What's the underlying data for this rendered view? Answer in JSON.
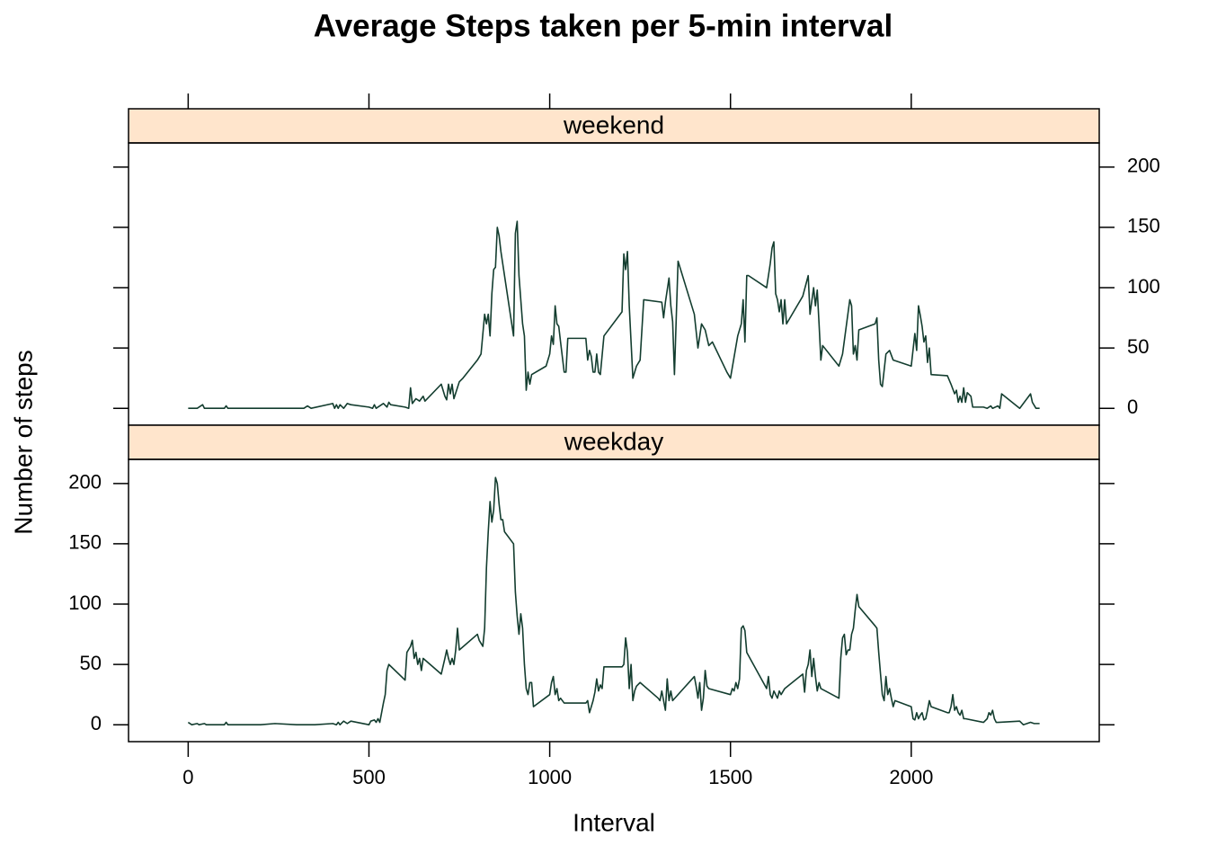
{
  "chart_data": {
    "type": "line",
    "title": "Average Steps taken per 5-min interval",
    "x_label": "Interval",
    "y_label": "Number of steps",
    "xlim": [
      -165,
      2520
    ],
    "xticks": [
      0,
      500,
      1000,
      1500,
      2000
    ],
    "ylim": [
      -14,
      220
    ],
    "yticks": [
      0,
      50,
      100,
      150,
      200
    ],
    "strip_color": "#ffe5cc",
    "series": [
      {
        "name": "weekend",
        "color": "#133d2f",
        "x": [
          0,
          25,
          40,
          45,
          100,
          105,
          110,
          200,
          320,
          330,
          340,
          400,
          405,
          410,
          415,
          420,
          430,
          440,
          450,
          500,
          510,
          515,
          520,
          540,
          550,
          555,
          560,
          600,
          610,
          615,
          620,
          630,
          640,
          650,
          655,
          700,
          710,
          715,
          720,
          725,
          730,
          735,
          750,
          760,
          800,
          810,
          820,
          825,
          830,
          835,
          840,
          845,
          850,
          855,
          860,
          865,
          900,
          905,
          910,
          915,
          925,
          930,
          935,
          940,
          945,
          950,
          990,
          1000,
          1005,
          1010,
          1015,
          1020,
          1025,
          1030,
          1040,
          1045,
          1050,
          1100,
          1105,
          1110,
          1115,
          1120,
          1125,
          1130,
          1135,
          1140,
          1150,
          1200,
          1205,
          1210,
          1215,
          1220,
          1225,
          1230,
          1240,
          1250,
          1260,
          1310,
          1315,
          1320,
          1330,
          1335,
          1340,
          1345,
          1355,
          1400,
          1410,
          1420,
          1430,
          1440,
          1450,
          1490,
          1500,
          1520,
          1530,
          1535,
          1540,
          1545,
          1550,
          1600,
          1610,
          1615,
          1620,
          1625,
          1630,
          1635,
          1640,
          1645,
          1650,
          1655,
          1700,
          1715,
          1720,
          1730,
          1735,
          1740,
          1745,
          1750,
          1755,
          1800,
          1810,
          1830,
          1835,
          1840,
          1845,
          1850,
          1855,
          1900,
          1905,
          1910,
          1915,
          1920,
          1930,
          1940,
          1950,
          2000,
          2010,
          2015,
          2020,
          2025,
          2030,
          2035,
          2040,
          2045,
          2050,
          2055,
          2100,
          2110,
          2120,
          2125,
          2130,
          2135,
          2140,
          2145,
          2150,
          2155,
          2165,
          2170,
          2200,
          2210,
          2220,
          2225,
          2240,
          2245,
          2250,
          2300,
          2330,
          2335,
          2345,
          2355
        ],
        "values": [
          0,
          0,
          3,
          0,
          0,
          2,
          0,
          0,
          0,
          2,
          0,
          4,
          0,
          3,
          0,
          3,
          0,
          4,
          3,
          1,
          0,
          3,
          0,
          4,
          1,
          5,
          3,
          1,
          0,
          17,
          4,
          8,
          6,
          10,
          6,
          20,
          10,
          7,
          20,
          12,
          20,
          8,
          22,
          25,
          40,
          45,
          78,
          70,
          78,
          60,
          95,
          115,
          117,
          150,
          143,
          130,
          60,
          145,
          155,
          110,
          70,
          60,
          15,
          30,
          20,
          28,
          35,
          45,
          60,
          53,
          85,
          70,
          68,
          55,
          30,
          30,
          58,
          58,
          40,
          48,
          43,
          30,
          30,
          45,
          30,
          28,
          60,
          80,
          128,
          115,
          130,
          85,
          55,
          25,
          35,
          40,
          90,
          88,
          75,
          88,
          108,
          85,
          72,
          28,
          122,
          78,
          50,
          70,
          65,
          52,
          55,
          30,
          25,
          60,
          70,
          90,
          55,
          110,
          110,
          100,
          120,
          133,
          138,
          95,
          90,
          80,
          90,
          70,
          90,
          70,
          93,
          110,
          78,
          100,
          85,
          98,
          70,
          40,
          52,
          35,
          45,
          90,
          85,
          45,
          52,
          40,
          65,
          70,
          75,
          40,
          20,
          18,
          45,
          48,
          40,
          35,
          62,
          48,
          85,
          77,
          68,
          55,
          60,
          38,
          50,
          28,
          27,
          20,
          12,
          15,
          5,
          10,
          5,
          17,
          5,
          13,
          10,
          1,
          1,
          0,
          2,
          0,
          2,
          0,
          12,
          0,
          12,
          5,
          0,
          0
        ]
      },
      {
        "name": "weekday",
        "color": "#133d2f",
        "x": [
          0,
          10,
          25,
          30,
          45,
          50,
          100,
          105,
          110,
          200,
          240,
          300,
          350,
          400,
          410,
          415,
          420,
          430,
          440,
          450,
          500,
          505,
          515,
          520,
          525,
          530,
          540,
          545,
          550,
          555,
          600,
          605,
          615,
          620,
          625,
          630,
          635,
          640,
          645,
          650,
          700,
          710,
          715,
          720,
          725,
          730,
          735,
          740,
          745,
          750,
          800,
          805,
          815,
          820,
          825,
          830,
          835,
          840,
          845,
          850,
          855,
          860,
          865,
          870,
          875,
          900,
          905,
          910,
          915,
          920,
          925,
          930,
          935,
          940,
          945,
          950,
          955,
          1000,
          1005,
          1010,
          1015,
          1020,
          1025,
          1030,
          1040,
          1100,
          1105,
          1110,
          1115,
          1120,
          1125,
          1130,
          1135,
          1140,
          1145,
          1150,
          1200,
          1205,
          1210,
          1215,
          1220,
          1225,
          1230,
          1235,
          1240,
          1250,
          1300,
          1305,
          1310,
          1315,
          1320,
          1325,
          1330,
          1335,
          1340,
          1400,
          1405,
          1410,
          1415,
          1420,
          1425,
          1430,
          1435,
          1440,
          1500,
          1505,
          1510,
          1515,
          1520,
          1525,
          1530,
          1535,
          1540,
          1545,
          1600,
          1605,
          1610,
          1615,
          1620,
          1625,
          1630,
          1635,
          1640,
          1650,
          1700,
          1705,
          1710,
          1715,
          1720,
          1725,
          1730,
          1735,
          1740,
          1745,
          1750,
          1800,
          1805,
          1810,
          1815,
          1820,
          1825,
          1830,
          1835,
          1840,
          1845,
          1850,
          1855,
          1900,
          1905,
          1910,
          1915,
          1920,
          1925,
          1930,
          1935,
          1940,
          1945,
          1950,
          1955,
          2000,
          2005,
          2010,
          2015,
          2020,
          2025,
          2030,
          2035,
          2040,
          2045,
          2050,
          2055,
          2100,
          2105,
          2110,
          2115,
          2120,
          2125,
          2130,
          2135,
          2140,
          2145,
          2150,
          2200,
          2210,
          2215,
          2220,
          2225,
          2230,
          2235,
          2240,
          2300,
          2310,
          2320,
          2330,
          2340,
          2355
        ],
        "values": [
          2,
          0,
          1,
          0,
          1,
          0,
          0,
          2,
          0,
          0,
          1,
          0,
          0,
          1,
          0,
          2,
          0,
          3,
          1,
          3,
          0,
          3,
          4,
          2,
          5,
          2,
          18,
          25,
          45,
          50,
          37,
          60,
          65,
          70,
          55,
          60,
          50,
          55,
          45,
          55,
          42,
          55,
          62,
          55,
          50,
          55,
          50,
          62,
          80,
          62,
          75,
          70,
          65,
          80,
          130,
          160,
          185,
          168,
          178,
          205,
          200,
          183,
          170,
          170,
          160,
          150,
          110,
          90,
          75,
          92,
          80,
          50,
          30,
          25,
          35,
          35,
          15,
          25,
          35,
          40,
          25,
          30,
          20,
          22,
          18,
          18,
          20,
          10,
          15,
          20,
          27,
          38,
          28,
          33,
          30,
          48,
          48,
          50,
          72,
          60,
          30,
          50,
          20,
          28,
          32,
          35,
          22,
          20,
          28,
          20,
          12,
          38,
          20,
          28,
          20,
          40,
          32,
          22,
          35,
          12,
          22,
          45,
          32,
          30,
          25,
          30,
          28,
          35,
          30,
          38,
          80,
          82,
          78,
          60,
          30,
          40,
          25,
          22,
          28,
          25,
          22,
          28,
          25,
          30,
          42,
          27,
          45,
          50,
          62,
          40,
          55,
          40,
          28,
          35,
          30,
          22,
          55,
          72,
          75,
          58,
          62,
          62,
          75,
          80,
          95,
          108,
          98,
          82,
          80,
          60,
          42,
          25,
          20,
          40,
          25,
          30,
          22,
          15,
          20,
          15,
          5,
          4,
          10,
          5,
          8,
          10,
          4,
          5,
          12,
          20,
          15,
          10,
          10,
          15,
          25,
          12,
          15,
          10,
          8,
          12,
          5,
          5,
          2,
          5,
          10,
          8,
          12,
          5,
          2,
          2,
          3,
          0,
          1,
          2,
          1,
          1
        ]
      }
    ]
  }
}
